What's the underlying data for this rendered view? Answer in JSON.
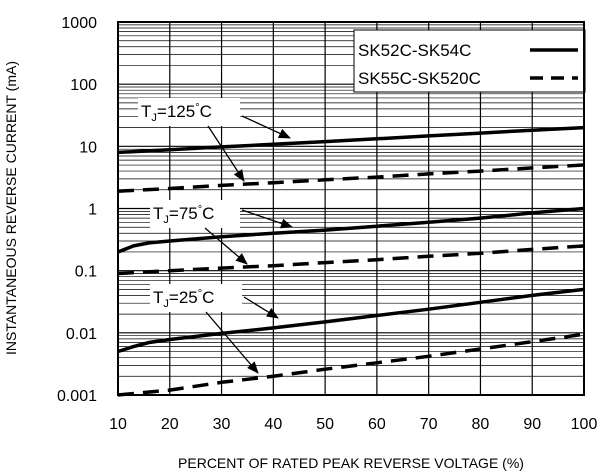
{
  "chart_data": {
    "type": "line",
    "title": "",
    "xlabel": "PERCENT OF RATED PEAK REVERSE VOLTAGE (%)",
    "ylabel": "INSTANTANEOUS REVERSE CURRENT (mA)",
    "xlim": [
      10,
      100
    ],
    "ylim": [
      0.001,
      1000
    ],
    "yscale": "log",
    "grid": true,
    "legend_position": "top-right",
    "x_ticks": [
      "10",
      "20",
      "30",
      "40",
      "50",
      "60",
      "70",
      "80",
      "90",
      "100"
    ],
    "y_ticks": [
      "1000",
      "100",
      "10",
      "1",
      "0.1",
      "0.01",
      "0.001"
    ],
    "legend": [
      {
        "name": "SK52C-SK54C",
        "style": "solid"
      },
      {
        "name": "SK55C-SK520C",
        "style": "dashed"
      }
    ],
    "annotations": [
      {
        "prefix": "T",
        "sub": "J",
        "value": "=125",
        "unit": "C"
      },
      {
        "prefix": "T",
        "sub": "J",
        "value": "=75",
        "unit": "C"
      },
      {
        "prefix": "T",
        "sub": "J",
        "value": "=25",
        "unit": "C"
      }
    ],
    "series": [
      {
        "group": "SK52C-SK54C",
        "tj": "125",
        "style": "solid",
        "x": [
          10,
          20,
          30,
          40,
          50,
          60,
          70,
          80,
          90,
          100
        ],
        "y": [
          8,
          8.8,
          9.8,
          10.8,
          11.9,
          13.2,
          14.7,
          16.3,
          18.2,
          20
        ]
      },
      {
        "group": "SK55C-SK520C",
        "tj": "125",
        "style": "dashed",
        "x": [
          10,
          20,
          30,
          40,
          50,
          60,
          70,
          80,
          90,
          100
        ],
        "y": [
          1.9,
          2.1,
          2.35,
          2.6,
          2.9,
          3.2,
          3.6,
          4.0,
          4.5,
          5.0
        ]
      },
      {
        "group": "SK52C-SK54C",
        "tj": "75",
        "style": "solid",
        "x": [
          10,
          13,
          16,
          20,
          30,
          40,
          50,
          60,
          70,
          80,
          90,
          100
        ],
        "y": [
          0.2,
          0.25,
          0.28,
          0.3,
          0.35,
          0.4,
          0.45,
          0.52,
          0.6,
          0.7,
          0.85,
          1.0
        ]
      },
      {
        "group": "SK55C-SK520C",
        "tj": "75",
        "style": "dashed",
        "x": [
          10,
          20,
          30,
          40,
          50,
          60,
          70,
          80,
          90,
          100
        ],
        "y": [
          0.09,
          0.1,
          0.11,
          0.12,
          0.135,
          0.15,
          0.17,
          0.19,
          0.22,
          0.25
        ]
      },
      {
        "group": "SK52C-SK54C",
        "tj": "25",
        "style": "solid",
        "x": [
          10,
          13,
          16,
          20,
          30,
          40,
          50,
          60,
          70,
          80,
          90,
          100
        ],
        "y": [
          0.005,
          0.006,
          0.007,
          0.0078,
          0.0098,
          0.012,
          0.015,
          0.019,
          0.024,
          0.031,
          0.04,
          0.05
        ]
      },
      {
        "group": "SK55C-SK520C",
        "tj": "25",
        "style": "dashed",
        "x": [
          10,
          20,
          30,
          40,
          50,
          60,
          70,
          80,
          90,
          100
        ],
        "y": [
          0.001,
          0.0012,
          0.0016,
          0.002,
          0.0026,
          0.0033,
          0.0042,
          0.0055,
          0.0072,
          0.0095
        ]
      }
    ]
  }
}
